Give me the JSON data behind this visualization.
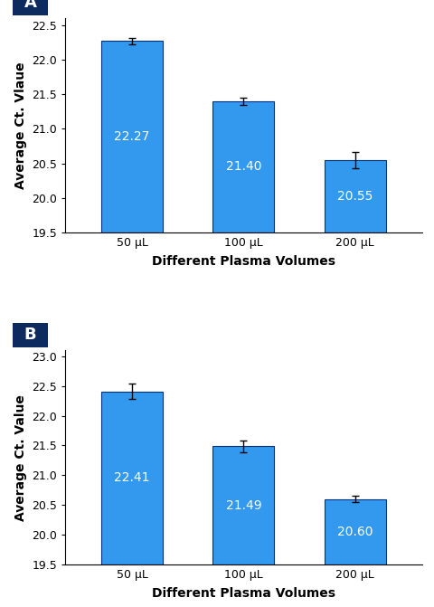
{
  "panel_A": {
    "categories": [
      "50 μL",
      "100 μL",
      "200 μL"
    ],
    "values": [
      22.27,
      21.4,
      20.55
    ],
    "errors": [
      0.05,
      0.05,
      0.12
    ],
    "ylabel": "Average Ct. Vlaue",
    "xlabel": "Different Plasma Volumes",
    "ylim": [
      19.5,
      22.6
    ],
    "yticks": [
      19.5,
      20.0,
      20.5,
      21.0,
      21.5,
      22.0,
      22.5
    ],
    "label": "A"
  },
  "panel_B": {
    "categories": [
      "50 μL",
      "100 μL",
      "200 μL"
    ],
    "values": [
      22.41,
      21.49,
      20.6
    ],
    "errors": [
      0.13,
      0.1,
      0.05
    ],
    "ylabel": "Average Ct. Value",
    "xlabel": "Different Plasma Volumes",
    "ylim": [
      19.5,
      23.1
    ],
    "yticks": [
      19.5,
      20.0,
      20.5,
      21.0,
      21.5,
      22.0,
      22.5,
      23.0
    ],
    "label": "B"
  },
  "bar_color": "#3399EE",
  "bar_edgecolor": "#003080",
  "label_bg_color": "#0d2a5e",
  "label_fontsize": 13,
  "bar_label_fontsize": 10,
  "axis_label_fontsize": 10,
  "tick_fontsize": 9,
  "bar_width": 0.55
}
